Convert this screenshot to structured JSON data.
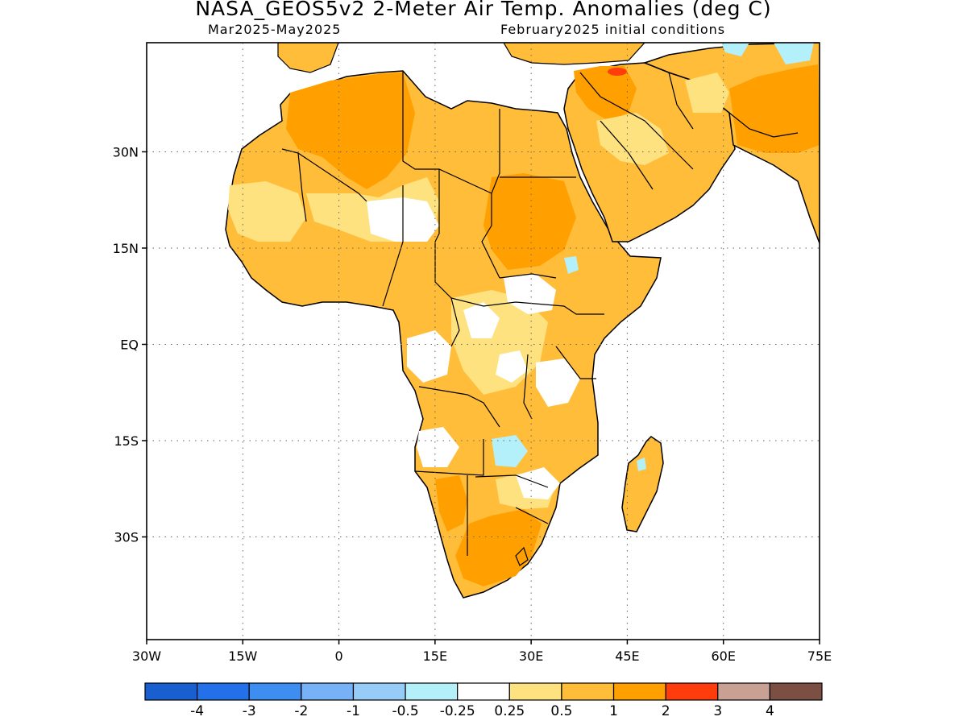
{
  "title": "NASA_GEOS5v2 2-Meter Air Temp. Anomalies (deg C)",
  "subtitle_left": "Mar2025-May2025",
  "subtitle_right": "February2025 initial conditions",
  "map": {
    "lon_range": [
      -30,
      75
    ],
    "lat_range": [
      -46,
      47
    ],
    "lon_ticks": [
      {
        "value": -30,
        "label": "30W"
      },
      {
        "value": -15,
        "label": "15W"
      },
      {
        "value": 0,
        "label": "0"
      },
      {
        "value": 15,
        "label": "15E"
      },
      {
        "value": 30,
        "label": "30E"
      },
      {
        "value": 45,
        "label": "45E"
      },
      {
        "value": 60,
        "label": "60E"
      },
      {
        "value": 75,
        "label": "75E"
      }
    ],
    "lat_ticks": [
      {
        "value": 30,
        "label": "30N"
      },
      {
        "value": 15,
        "label": "15N"
      },
      {
        "value": 0,
        "label": "EQ"
      },
      {
        "value": -15,
        "label": "15S"
      },
      {
        "value": -30,
        "label": "30S"
      }
    ],
    "gridlines": "dotted",
    "dominant_anomaly_category": "0.5 to 2 (warm) over most of Africa and the Middle East",
    "max_anomaly_region": "2 to 3 over northern Iraq"
  },
  "colorbar": {
    "colors": [
      "#1a5fd0",
      "#2470e8",
      "#3d8ef0",
      "#76b2f5",
      "#97cbf8",
      "#b4f0fa",
      "#ffffff",
      "#fee27f",
      "#ffbd3a",
      "#ff9f00",
      "#ff3c0c",
      "#c9a194",
      "#7b4f44"
    ],
    "labels": [
      "-4",
      "-3",
      "-2",
      "-1",
      "-0.5",
      "-0.25",
      "0.25",
      "0.5",
      "1",
      "2",
      "3",
      "4"
    ]
  }
}
